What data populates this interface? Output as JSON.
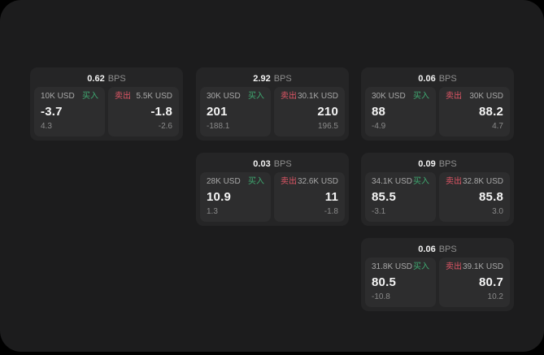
{
  "labels": {
    "buy": "买入",
    "sell": "卖出",
    "bps_unit": "BPS"
  },
  "colors": {
    "background": "#000000",
    "panel_bg": "#1c1c1d",
    "card_bg": "#252526",
    "pane_bg": "#2d2d2e",
    "buy_green": "#3fab72",
    "sell_red": "#e05666",
    "primary_text": "#f5f5f5",
    "secondary_text": "#8a8a8a"
  },
  "cards": [
    {
      "bps": "0.62",
      "buy": {
        "amount": "10K USD",
        "main": "-3.7",
        "sub": "4.3"
      },
      "sell": {
        "amount": "5.5K USD",
        "main": "-1.8",
        "sub": "-2.6"
      }
    },
    {
      "bps": "2.92",
      "buy": {
        "amount": "30K USD",
        "main": "201",
        "sub": "-188.1"
      },
      "sell": {
        "amount": "30.1K USD",
        "main": "210",
        "sub": "196.5"
      }
    },
    {
      "bps": "0.06",
      "buy": {
        "amount": "30K USD",
        "main": "88",
        "sub": "-4.9"
      },
      "sell": {
        "amount": "30K USD",
        "main": "88.2",
        "sub": "4.7"
      }
    },
    {
      "bps": "0.03",
      "buy": {
        "amount": "28K USD",
        "main": "10.9",
        "sub": "1.3"
      },
      "sell": {
        "amount": "32.6K USD",
        "main": "11",
        "sub": "-1.8"
      }
    },
    {
      "bps": "0.09",
      "buy": {
        "amount": "34.1K USD",
        "main": "85.5",
        "sub": "-3.1"
      },
      "sell": {
        "amount": "32.8K USD",
        "main": "85.8",
        "sub": "3.0"
      }
    },
    {
      "bps": "0.06",
      "buy": {
        "amount": "31.8K USD",
        "main": "80.5",
        "sub": "-10.8"
      },
      "sell": {
        "amount": "39.1K USD",
        "main": "80.7",
        "sub": "10.2"
      }
    }
  ]
}
